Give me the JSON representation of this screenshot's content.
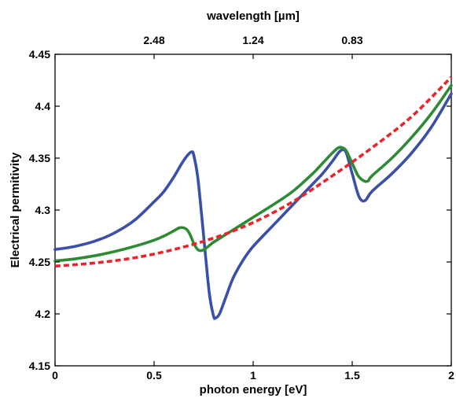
{
  "chart_data": {
    "type": "line",
    "title": "",
    "xlabel": "photon energy [eV]",
    "ylabel": "Electrical permitivity",
    "top_xlabel": "wavelength [µm]",
    "xlim": [
      0,
      2
    ],
    "ylim": [
      4.15,
      4.45
    ],
    "x_ticks": [
      0,
      0.5,
      1,
      1.5,
      2
    ],
    "x_tick_labels": [
      "0",
      "0.5",
      "1",
      "1.5",
      "2"
    ],
    "y_ticks": [
      4.15,
      4.2,
      4.25,
      4.3,
      4.35,
      4.4,
      4.45
    ],
    "y_tick_labels": [
      "4.15",
      "4.2",
      "4.25",
      "4.3",
      "4.35",
      "4.4",
      "4.45"
    ],
    "top_x_ticks": [
      0.5,
      1.0,
      1.5
    ],
    "top_x_tick_labels": [
      "2.48",
      "1.24",
      "0.83"
    ],
    "grid": false,
    "legend": "none",
    "series": [
      {
        "color": "#3a4fa8",
        "style": "solid",
        "x": [
          0,
          0.1,
          0.2,
          0.3,
          0.4,
          0.5,
          0.55,
          0.6,
          0.64,
          0.67,
          0.69,
          0.7,
          0.72,
          0.74,
          0.76,
          0.78,
          0.8,
          0.81,
          0.83,
          0.86,
          0.9,
          0.95,
          1.0,
          1.1,
          1.2,
          1.3,
          1.35,
          1.4,
          1.43,
          1.45,
          1.47,
          1.5,
          1.53,
          1.55,
          1.57,
          1.6,
          1.7,
          1.8,
          1.9,
          2.0
        ],
        "y": [
          4.262,
          4.265,
          4.27,
          4.278,
          4.29,
          4.308,
          4.318,
          4.332,
          4.345,
          4.353,
          4.356,
          4.353,
          4.332,
          4.295,
          4.255,
          4.218,
          4.198,
          4.196,
          4.2,
          4.215,
          4.235,
          4.252,
          4.265,
          4.285,
          4.305,
          4.325,
          4.335,
          4.347,
          4.355,
          4.358,
          4.355,
          4.335,
          4.315,
          4.309,
          4.31,
          4.318,
          4.335,
          4.355,
          4.38,
          4.412
        ]
      },
      {
        "color": "#2e8b35",
        "style": "solid",
        "x": [
          0,
          0.1,
          0.2,
          0.3,
          0.4,
          0.5,
          0.55,
          0.6,
          0.63,
          0.66,
          0.68,
          0.7,
          0.72,
          0.74,
          0.76,
          0.78,
          0.8,
          0.85,
          0.9,
          1.0,
          1.1,
          1.2,
          1.3,
          1.35,
          1.4,
          1.43,
          1.45,
          1.47,
          1.5,
          1.53,
          1.56,
          1.58,
          1.6,
          1.7,
          1.8,
          1.9,
          2.0
        ],
        "y": [
          4.251,
          4.253,
          4.256,
          4.26,
          4.265,
          4.271,
          4.275,
          4.28,
          4.283,
          4.282,
          4.277,
          4.268,
          4.262,
          4.261,
          4.263,
          4.266,
          4.269,
          4.275,
          4.281,
          4.293,
          4.305,
          4.318,
          4.335,
          4.345,
          4.355,
          4.36,
          4.36,
          4.357,
          4.345,
          4.333,
          4.328,
          4.328,
          4.333,
          4.35,
          4.37,
          4.393,
          4.42
        ]
      },
      {
        "color": "#e8252a",
        "style": "dashed",
        "x": [
          0,
          0.2,
          0.4,
          0.6,
          0.8,
          1.0,
          1.2,
          1.4,
          1.6,
          1.8,
          2.0
        ],
        "y": [
          4.246,
          4.249,
          4.254,
          4.262,
          4.273,
          4.288,
          4.308,
          4.333,
          4.36,
          4.39,
          4.428
        ]
      }
    ]
  }
}
